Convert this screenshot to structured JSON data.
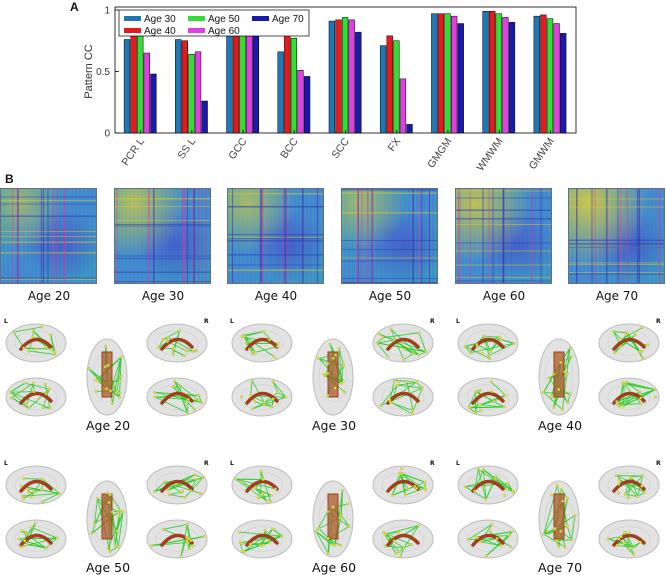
{
  "panels": {
    "a": "A",
    "b": "B"
  },
  "chart_data": {
    "type": "bar",
    "ylabel": "Pattern CC",
    "xlabel": "",
    "ylim": [
      0,
      1.0
    ],
    "yticks": [
      0,
      0.5,
      1
    ],
    "categories": [
      "PCR L",
      "SS L",
      "GCC",
      "BCC",
      "SCC",
      "FX",
      "GMGM",
      "WMWM",
      "GMWM"
    ],
    "legend_position": "top-left",
    "series": [
      {
        "name": "Age 30",
        "color": "#1f77b4",
        "values": [
          0.76,
          0.76,
          0.92,
          0.66,
          0.91,
          0.71,
          0.97,
          0.99,
          0.95
        ]
      },
      {
        "name": "Age 40",
        "color": "#e41a1c",
        "values": [
          0.88,
          0.75,
          0.93,
          0.81,
          0.92,
          0.79,
          0.97,
          0.99,
          0.96
        ]
      },
      {
        "name": "Age 50",
        "color": "#33dd33",
        "values": [
          0.81,
          0.64,
          0.92,
          0.77,
          0.94,
          0.75,
          0.97,
          0.97,
          0.93
        ]
      },
      {
        "name": "Age 60",
        "color": "#e040e0",
        "values": [
          0.65,
          0.66,
          0.86,
          0.51,
          0.92,
          0.44,
          0.95,
          0.94,
          0.89
        ]
      },
      {
        "name": "Age 70",
        "color": "#1a1aaa",
        "values": [
          0.48,
          0.26,
          0.8,
          0.46,
          0.82,
          0.07,
          0.89,
          0.9,
          0.81
        ]
      }
    ]
  },
  "matrices": [
    {
      "label": "Age 20",
      "warmth": 0.25
    },
    {
      "label": "Age 30",
      "warmth": 0.45
    },
    {
      "label": "Age 40",
      "warmth": 0.35
    },
    {
      "label": "Age 50",
      "warmth": 0.3
    },
    {
      "label": "Age 60",
      "warmth": 0.55
    },
    {
      "label": "Age 70",
      "warmth": 0.65
    }
  ],
  "brains": [
    {
      "label": "Age 20",
      "l": "L",
      "r": "R"
    },
    {
      "label": "Age 30",
      "l": "L",
      "r": "R"
    },
    {
      "label": "Age 40",
      "l": "L",
      "r": "R"
    },
    {
      "label": "Age 50",
      "l": "L",
      "r": "R"
    },
    {
      "label": "Age 60",
      "l": "L",
      "r": "R"
    },
    {
      "label": "Age 70",
      "l": "L",
      "r": "R"
    }
  ]
}
